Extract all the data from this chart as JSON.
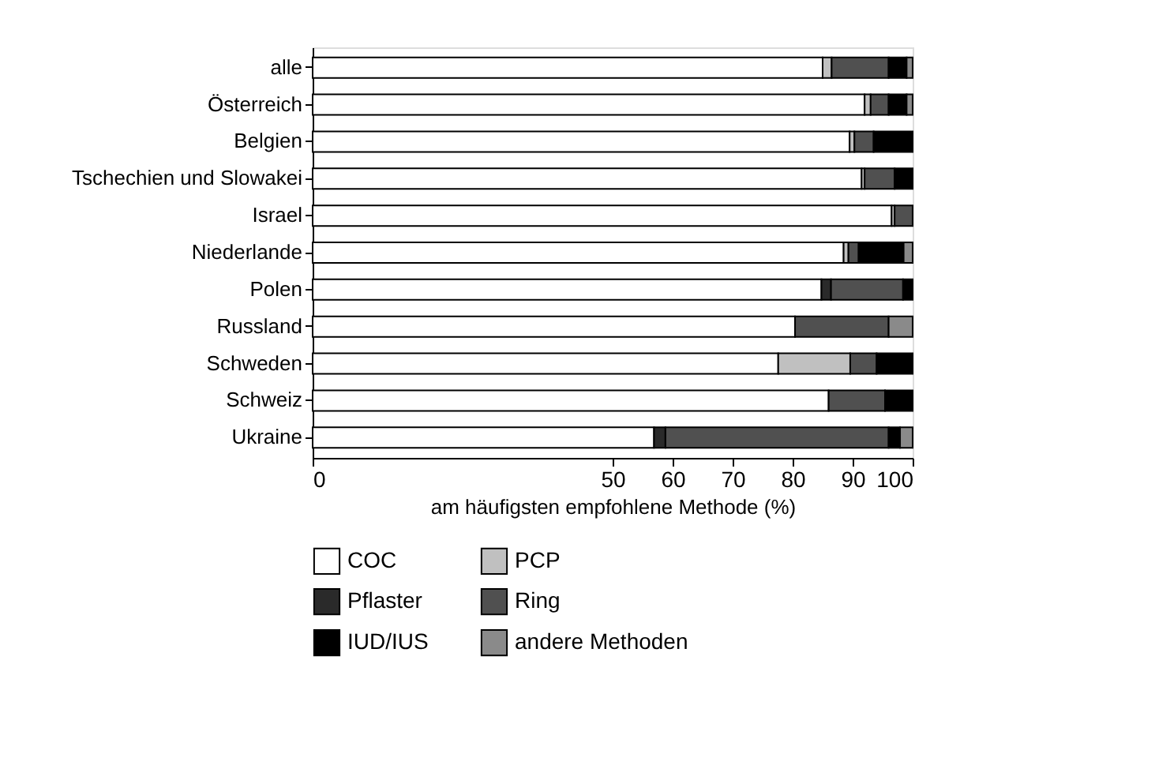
{
  "chart_data": {
    "type": "bar",
    "orientation": "horizontal",
    "stacked": true,
    "categories": [
      "alle",
      "Österreich",
      "Belgien",
      "Tschechien und Slowakei",
      "Israel",
      "Niederlande",
      "Polen",
      "Russland",
      "Schweden",
      "Schweiz",
      "Ukraine"
    ],
    "xlabel": "am häufigsten empfohlene Methode (%)",
    "xlim": [
      0,
      100
    ],
    "xticks": [
      0,
      50,
      60,
      70,
      80,
      90,
      100
    ],
    "grid": false,
    "legend": "bottom",
    "series": [
      {
        "name": "COC",
        "color": "#ffffff",
        "values": [
          85,
          92,
          89.5,
          91.5,
          96.5,
          88.5,
          84.8,
          80.4,
          77.6,
          86,
          56.9
        ]
      },
      {
        "name": "PCP",
        "color": "#c0c0c0",
        "values": [
          1.5,
          1,
          0.8,
          0.5,
          0.5,
          0.8,
          null,
          null,
          12,
          null,
          null
        ]
      },
      {
        "name": "Pflaster",
        "color": "#2a2a2a",
        "values": [
          null,
          null,
          null,
          null,
          null,
          null,
          1.6,
          null,
          null,
          null,
          1.9
        ]
      },
      {
        "name": "Ring",
        "color": "#505050",
        "values": [
          9.5,
          3,
          3.2,
          5,
          3,
          1.7,
          12,
          15.6,
          4.4,
          9.4,
          37.2
        ]
      },
      {
        "name": "IUD/IUS",
        "color": "#000000",
        "values": [
          3,
          3,
          6.5,
          3,
          null,
          7.5,
          1.6,
          null,
          6,
          4.6,
          1.9
        ]
      },
      {
        "name": "andere Methoden",
        "color": "#8a8a8a",
        "values": [
          1,
          1,
          null,
          null,
          null,
          1.5,
          null,
          4,
          null,
          null,
          2.1
        ]
      }
    ]
  }
}
